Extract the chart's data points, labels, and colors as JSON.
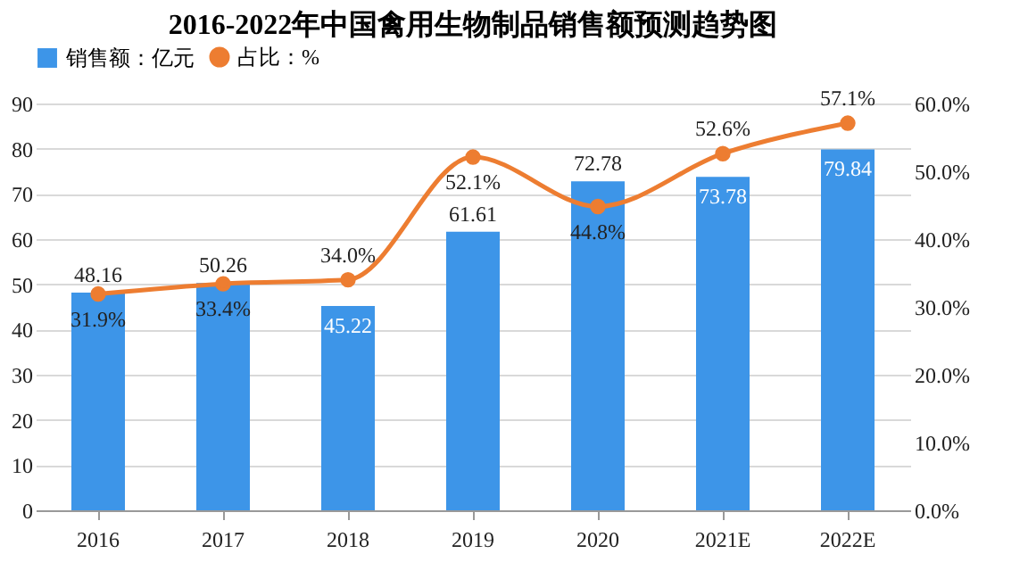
{
  "chart_data": {
    "type": "bar",
    "title": "2016-2022年中国禽用生物制品销售额预测趋势图",
    "categories": [
      "2016",
      "2017",
      "2018",
      "2019",
      "2020",
      "2021E",
      "2022E"
    ],
    "series": [
      {
        "name": "销售额：亿元",
        "color": "#3d95e8",
        "values": [
          48.16,
          50.26,
          45.22,
          61.61,
          72.78,
          73.78,
          79.84
        ]
      },
      {
        "name": "占比：%",
        "type": "line",
        "axis": "y2",
        "color": "#ed7d31",
        "values": [
          31.9,
          33.4,
          34.0,
          52.1,
          44.8,
          52.6,
          57.1
        ],
        "value_labels": [
          "31.9%",
          "33.4%",
          "34.0%",
          "52.1%",
          "44.8%",
          "52.6%",
          "57.1%"
        ]
      }
    ],
    "ylim": [
      0,
      90
    ],
    "yticks": [
      0,
      10,
      20,
      30,
      40,
      50,
      60,
      70,
      80,
      90
    ],
    "y2lim": [
      0,
      60
    ],
    "y2ticks": [
      {
        "value": 0,
        "label": "0.0%"
      },
      {
        "value": 10,
        "label": "10.0%"
      },
      {
        "value": 20,
        "label": "20.0%"
      },
      {
        "value": 30,
        "label": "30.0%"
      },
      {
        "value": 40,
        "label": "40.0%"
      },
      {
        "value": 50,
        "label": "50.0%"
      },
      {
        "value": 60,
        "label": "60.0%"
      }
    ],
    "grid": "y",
    "legend": "top",
    "marker": "circle",
    "line_style": "solid",
    "data_labels": true
  }
}
